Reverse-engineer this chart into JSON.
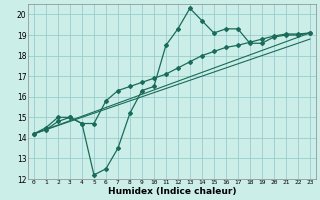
{
  "xlabel": "Humidex (Indice chaleur)",
  "background_color": "#cceee8",
  "grid_color": "#99cccc",
  "line_color": "#1a6b5a",
  "xlim": [
    -0.5,
    23.5
  ],
  "ylim": [
    12,
    20.5
  ],
  "xticks": [
    0,
    1,
    2,
    3,
    4,
    5,
    6,
    7,
    8,
    9,
    10,
    11,
    12,
    13,
    14,
    15,
    16,
    17,
    18,
    19,
    20,
    21,
    22,
    23
  ],
  "yticks": [
    12,
    13,
    14,
    15,
    16,
    17,
    18,
    19,
    20
  ],
  "line1_x": [
    0,
    1,
    2,
    3,
    4,
    5,
    6,
    7,
    8,
    9,
    10,
    11,
    12,
    13,
    14,
    15,
    16,
    17,
    18,
    19,
    20,
    21,
    22,
    23
  ],
  "line1_y": [
    14.2,
    14.5,
    15.0,
    15.0,
    14.7,
    12.2,
    12.5,
    13.5,
    15.2,
    16.3,
    16.5,
    18.5,
    19.3,
    20.3,
    19.7,
    19.1,
    19.3,
    19.3,
    18.6,
    18.6,
    18.9,
    19.0,
    19.0,
    19.1
  ],
  "line2_x": [
    0,
    1,
    2,
    3,
    4,
    5,
    6,
    7,
    8,
    9,
    10,
    11,
    12,
    13,
    14,
    15,
    16,
    17,
    18,
    19,
    20,
    21,
    22,
    23
  ],
  "line2_y": [
    14.2,
    14.4,
    14.8,
    15.0,
    14.7,
    14.7,
    15.8,
    16.3,
    16.5,
    16.7,
    16.9,
    17.1,
    17.4,
    17.7,
    18.0,
    18.2,
    18.4,
    18.5,
    18.65,
    18.8,
    18.95,
    19.05,
    19.05,
    19.1
  ],
  "line3_x": [
    0,
    23
  ],
  "line3_y": [
    14.2,
    19.1
  ],
  "line4_x": [
    0,
    23
  ],
  "line4_y": [
    14.2,
    18.8
  ]
}
